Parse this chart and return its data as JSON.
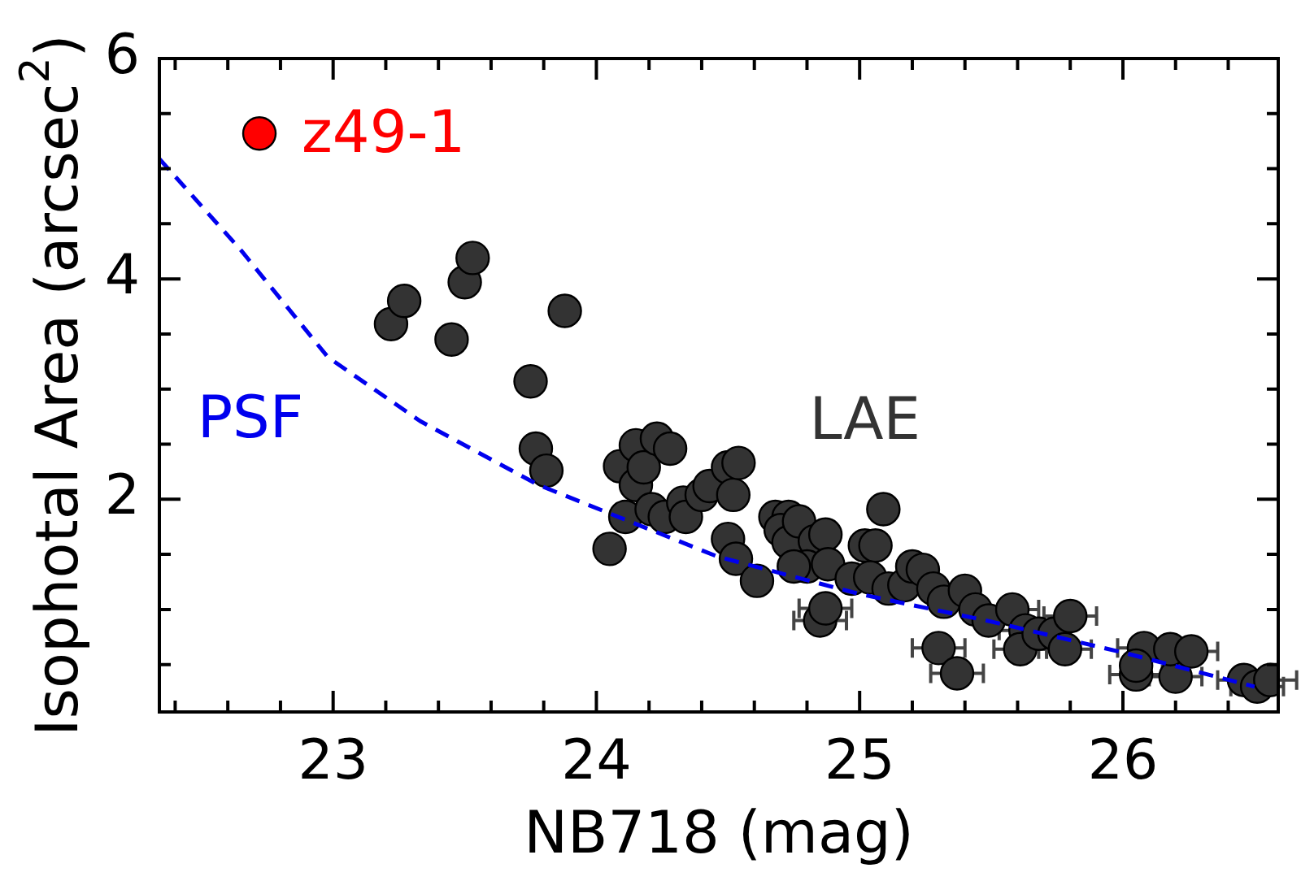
{
  "chart_data": {
    "type": "scatter",
    "xlabel": "NB718 (mag)",
    "ylabel": "Isophotal Area (arcsec$^{2}$)",
    "xlim": [
      22.34,
      26.59
    ],
    "ylim": [
      0.07,
      6
    ],
    "xticks": [
      {
        "value": 22.4,
        "label": null
      },
      {
        "value": 22.6,
        "label": null
      },
      {
        "value": 22.8,
        "label": null
      },
      23,
      {
        "value": 23.2,
        "label": null
      },
      {
        "value": 23.4,
        "label": null
      },
      {
        "value": 23.6,
        "label": null
      },
      {
        "value": 23.8,
        "label": null
      },
      24,
      {
        "value": 24.2,
        "label": null
      },
      {
        "value": 24.4,
        "label": null
      },
      {
        "value": 24.6,
        "label": null
      },
      {
        "value": 24.8,
        "label": null
      },
      25,
      {
        "value": 25.2,
        "label": null
      },
      {
        "value": 25.4,
        "label": null
      },
      {
        "value": 25.6,
        "label": null
      },
      {
        "value": 25.8,
        "label": null
      },
      26,
      {
        "value": 26.2,
        "label": null
      },
      {
        "value": 26.4,
        "label": null
      }
    ],
    "yticks": [
      {
        "value": 0.5,
        "label": null
      },
      {
        "value": 1,
        "label": null
      },
      {
        "value": 1.5,
        "label": null
      },
      2,
      {
        "value": 2.5,
        "label": null
      },
      {
        "value": 3,
        "label": null
      },
      {
        "value": 3.5,
        "label": null
      },
      4,
      {
        "value": 4.5,
        "label": null
      },
      {
        "value": 5,
        "label": null
      },
      {
        "value": 5.5,
        "label": null
      },
      6
    ],
    "grid": false,
    "legend": false,
    "marker": "circle",
    "series": [
      {
        "name": "PSF",
        "type": "line",
        "line_style": "dashed",
        "marker": "none",
        "color": "#0000ee",
        "x": [
          22.34,
          22.65,
          22.98,
          23.33,
          23.78,
          24.46,
          25.0,
          25.5,
          26.0,
          26.5
        ],
        "values": [
          5.09,
          4.26,
          3.29,
          2.71,
          2.13,
          1.48,
          1.14,
          0.89,
          0.61,
          0.3
        ]
      },
      {
        "name": "LAE",
        "color": "#333333",
        "x": [
          23.22,
          23.27,
          23.45,
          23.5,
          23.53,
          23.88,
          23.75,
          23.77,
          23.81,
          24.05,
          24.09,
          24.11,
          24.15,
          24.15,
          24.18,
          24.21,
          24.23,
          24.28,
          24.26,
          24.33,
          24.34,
          24.4,
          24.43,
          24.5,
          24.52,
          24.54,
          24.5,
          24.53,
          24.61,
          24.68,
          24.73,
          24.7,
          24.73,
          24.77,
          24.83,
          24.8,
          24.75,
          24.87,
          24.88,
          24.85,
          24.87,
          24.97,
          25.02,
          25.09,
          25.06,
          25.04,
          25.11,
          25.17,
          25.2,
          25.24,
          25.28,
          25.32,
          25.4,
          25.3,
          25.37,
          25.44,
          25.49,
          25.58,
          25.63,
          25.61,
          25.68,
          25.74,
          25.8,
          25.78,
          26.05,
          26.08,
          26.05,
          26.2,
          26.18,
          26.26,
          26.46,
          26.51,
          26.56
        ],
        "values": [
          3.59,
          3.8,
          3.45,
          3.97,
          4.19,
          3.71,
          3.07,
          2.46,
          2.26,
          1.55,
          2.3,
          1.84,
          2.49,
          2.13,
          2.29,
          1.91,
          2.55,
          2.46,
          1.84,
          1.97,
          1.84,
          2.04,
          2.12,
          2.29,
          2.04,
          2.33,
          1.64,
          1.46,
          1.26,
          1.84,
          1.84,
          1.72,
          1.61,
          1.8,
          1.62,
          1.39,
          1.39,
          1.68,
          1.41,
          0.9,
          1.01,
          1.28,
          1.58,
          1.91,
          1.58,
          1.29,
          1.19,
          1.22,
          1.39,
          1.36,
          1.19,
          1.07,
          1.17,
          0.65,
          0.42,
          1.0,
          0.9,
          1.0,
          0.81,
          0.64,
          0.78,
          0.78,
          0.94,
          0.64,
          0.41,
          0.65,
          0.49,
          0.39,
          0.64,
          0.62,
          0.36,
          0.3,
          0.36
        ],
        "xerrors": [
          null,
          null,
          null,
          null,
          null,
          null,
          null,
          null,
          null,
          null,
          null,
          null,
          null,
          null,
          null,
          null,
          null,
          null,
          null,
          null,
          null,
          null,
          null,
          null,
          null,
          null,
          null,
          null,
          null,
          null,
          null,
          null,
          null,
          null,
          null,
          null,
          null,
          null,
          null,
          0.1,
          0.1,
          null,
          null,
          null,
          null,
          null,
          null,
          null,
          null,
          null,
          null,
          null,
          null,
          0.1,
          0.1,
          null,
          null,
          0.1,
          0.1,
          0.1,
          0.1,
          null,
          0.1,
          0.1,
          0.1,
          0.1,
          null,
          0.1,
          0.1,
          0.1,
          0.1,
          0.1,
          0.1
        ]
      },
      {
        "color": "#ff0000",
        "x": [
          22.72
        ],
        "values": [
          5.32
        ]
      }
    ],
    "annotations": [
      {
        "text": "z49-1",
        "x": 22.72,
        "y": 5.32
      }
    ]
  }
}
